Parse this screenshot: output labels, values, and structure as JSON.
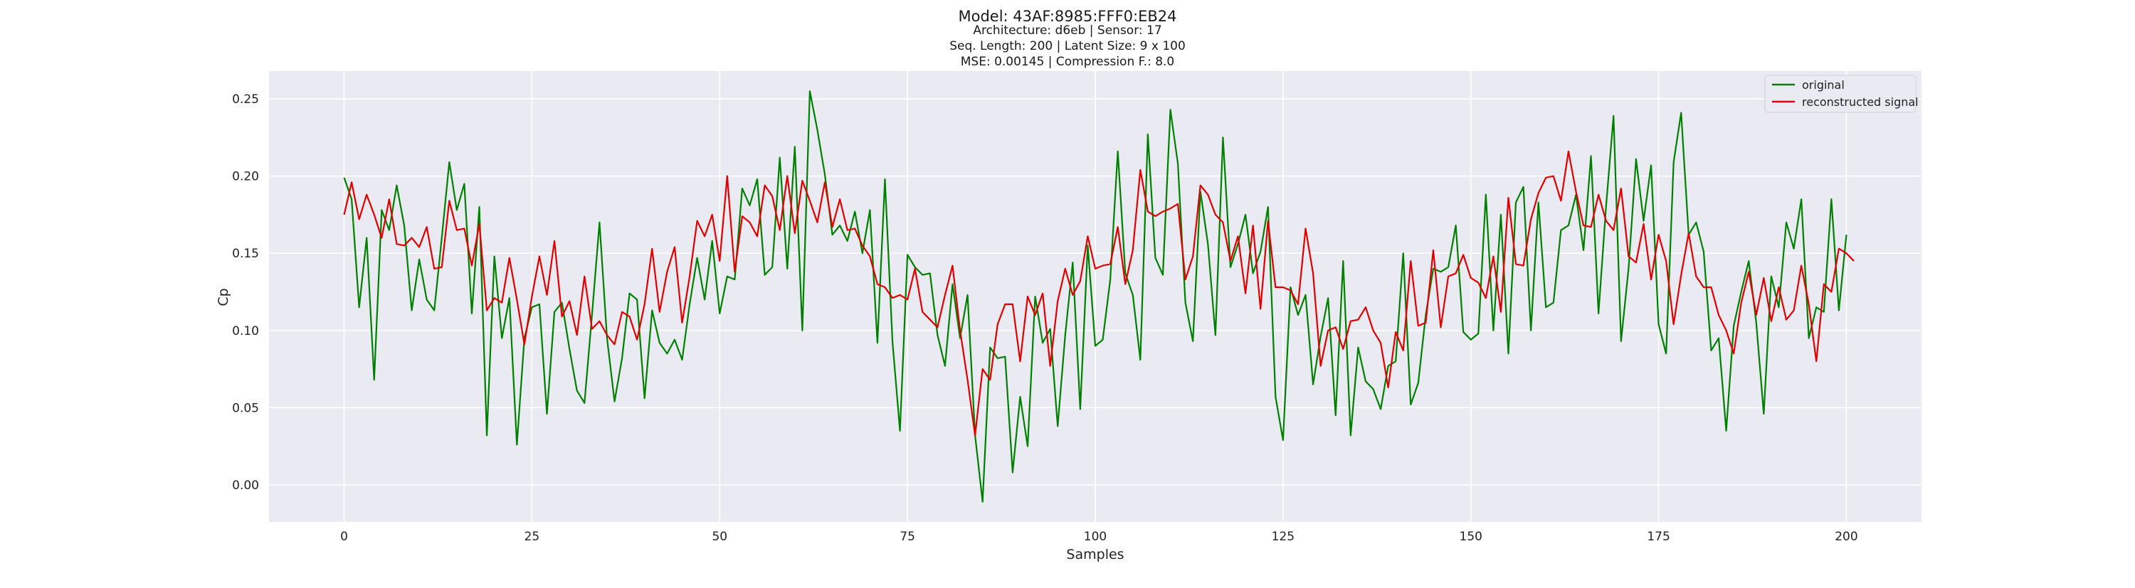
{
  "chart_data": {
    "type": "line",
    "title": "Model: 43AF:8985:FFF0:EB24",
    "subtitle_lines": [
      "Architecture: d6eb | Sensor: 17",
      "Seq. Length: 200 | Latent Size: 9 x 100",
      "MSE: 0.00145 | Compression F.: 8.0"
    ],
    "xlabel": "Samples",
    "ylabel": "Cp",
    "xlim": [
      -10,
      210
    ],
    "ylim": [
      -0.024,
      0.268
    ],
    "xticks": [
      0,
      25,
      50,
      75,
      100,
      125,
      150,
      175,
      200
    ],
    "yticks": [
      0.0,
      0.05,
      0.1,
      0.15,
      0.2,
      0.25
    ],
    "xtick_labels": [
      "0",
      "25",
      "50",
      "75",
      "100",
      "125",
      "150",
      "175",
      "200"
    ],
    "ytick_labels": [
      "0.00",
      "0.05",
      "0.10",
      "0.15",
      "0.20",
      "0.25"
    ],
    "grid": true,
    "legend_position": "top-right",
    "background": "#eaeaf2",
    "series": [
      {
        "name": "original",
        "color": "#008000",
        "values": [
          0.199,
          0.185,
          0.115,
          0.16,
          0.068,
          0.178,
          0.165,
          0.194,
          0.168,
          0.113,
          0.146,
          0.12,
          0.113,
          0.16,
          0.209,
          0.178,
          0.195,
          0.111,
          0.18,
          0.032,
          0.148,
          0.095,
          0.121,
          0.026,
          0.095,
          0.115,
          0.117,
          0.046,
          0.112,
          0.118,
          0.088,
          0.061,
          0.053,
          0.11,
          0.17,
          0.095,
          0.054,
          0.082,
          0.124,
          0.12,
          0.056,
          0.113,
          0.092,
          0.085,
          0.094,
          0.081,
          0.117,
          0.147,
          0.12,
          0.158,
          0.111,
          0.135,
          0.133,
          0.192,
          0.181,
          0.198,
          0.136,
          0.141,
          0.212,
          0.14,
          0.219,
          0.1,
          0.255,
          0.23,
          0.201,
          0.162,
          0.168,
          0.158,
          0.177,
          0.15,
          0.178,
          0.092,
          0.198,
          0.093,
          0.035,
          0.149,
          0.141,
          0.136,
          0.137,
          0.097,
          0.077,
          0.13,
          0.095,
          0.123,
          0.032,
          -0.011,
          0.089,
          0.082,
          0.083,
          0.008,
          0.057,
          0.025,
          0.122,
          0.092,
          0.101,
          0.038,
          0.097,
          0.144,
          0.049,
          0.155,
          0.09,
          0.094,
          0.133,
          0.216,
          0.137,
          0.123,
          0.081,
          0.227,
          0.147,
          0.136,
          0.243,
          0.208,
          0.118,
          0.093,
          0.19,
          0.156,
          0.097,
          0.225,
          0.141,
          0.156,
          0.175,
          0.137,
          0.151,
          0.18,
          0.057,
          0.029,
          0.128,
          0.11,
          0.123,
          0.065,
          0.096,
          0.121,
          0.045,
          0.145,
          0.032,
          0.089,
          0.067,
          0.062,
          0.049,
          0.077,
          0.08,
          0.15,
          0.052,
          0.066,
          0.11,
          0.14,
          0.138,
          0.141,
          0.168,
          0.099,
          0.094,
          0.098,
          0.188,
          0.1,
          0.175,
          0.085,
          0.183,
          0.193,
          0.1,
          0.183,
          0.115,
          0.118,
          0.165,
          0.168,
          0.188,
          0.152,
          0.213,
          0.111,
          0.18,
          0.239,
          0.093,
          0.14,
          0.211,
          0.171,
          0.207,
          0.104,
          0.085,
          0.209,
          0.241,
          0.162,
          0.17,
          0.151,
          0.087,
          0.095,
          0.035,
          0.103,
          0.125,
          0.145,
          0.105,
          0.046,
          0.135,
          0.115,
          0.17,
          0.153,
          0.185,
          0.095,
          0.115,
          0.112,
          0.185,
          0.113,
          0.162
        ]
      },
      {
        "name": "reconstructed signal",
        "color": "#e00000",
        "values": [
          0.175,
          0.196,
          0.172,
          0.188,
          0.175,
          0.16,
          0.185,
          0.156,
          0.155,
          0.16,
          0.154,
          0.167,
          0.14,
          0.141,
          0.184,
          0.165,
          0.166,
          0.142,
          0.169,
          0.113,
          0.121,
          0.118,
          0.147,
          0.12,
          0.091,
          0.122,
          0.148,
          0.123,
          0.158,
          0.109,
          0.119,
          0.097,
          0.135,
          0.101,
          0.106,
          0.097,
          0.091,
          0.112,
          0.109,
          0.094,
          0.117,
          0.153,
          0.112,
          0.138,
          0.154,
          0.105,
          0.135,
          0.171,
          0.161,
          0.175,
          0.145,
          0.2,
          0.138,
          0.174,
          0.17,
          0.161,
          0.194,
          0.187,
          0.165,
          0.2,
          0.163,
          0.197,
          0.184,
          0.17,
          0.196,
          0.167,
          0.185,
          0.165,
          0.166,
          0.155,
          0.148,
          0.13,
          0.128,
          0.121,
          0.123,
          0.12,
          0.14,
          0.112,
          0.107,
          0.102,
          0.123,
          0.142,
          0.1,
          0.068,
          0.032,
          0.075,
          0.068,
          0.104,
          0.117,
          0.117,
          0.08,
          0.122,
          0.11,
          0.124,
          0.077,
          0.119,
          0.14,
          0.123,
          0.132,
          0.161,
          0.14,
          0.142,
          0.143,
          0.167,
          0.13,
          0.152,
          0.204,
          0.177,
          0.174,
          0.177,
          0.179,
          0.182,
          0.133,
          0.148,
          0.194,
          0.188,
          0.175,
          0.17,
          0.145,
          0.161,
          0.124,
          0.168,
          0.114,
          0.171,
          0.128,
          0.128,
          0.126,
          0.117,
          0.166,
          0.137,
          0.077,
          0.1,
          0.102,
          0.088,
          0.106,
          0.107,
          0.115,
          0.1,
          0.092,
          0.063,
          0.099,
          0.087,
          0.145,
          0.103,
          0.105,
          0.152,
          0.102,
          0.135,
          0.137,
          0.149,
          0.134,
          0.131,
          0.121,
          0.148,
          0.112,
          0.186,
          0.143,
          0.142,
          0.172,
          0.189,
          0.199,
          0.2,
          0.184,
          0.216,
          0.19,
          0.168,
          0.167,
          0.188,
          0.171,
          0.165,
          0.192,
          0.148,
          0.144,
          0.169,
          0.133,
          0.162,
          0.145,
          0.104,
          0.136,
          0.163,
          0.135,
          0.128,
          0.128,
          0.11,
          0.1,
          0.085,
          0.118,
          0.138,
          0.11,
          0.134,
          0.106,
          0.128,
          0.107,
          0.113,
          0.142,
          0.117,
          0.08,
          0.13,
          0.125,
          0.153,
          0.15,
          0.145
        ]
      }
    ]
  }
}
